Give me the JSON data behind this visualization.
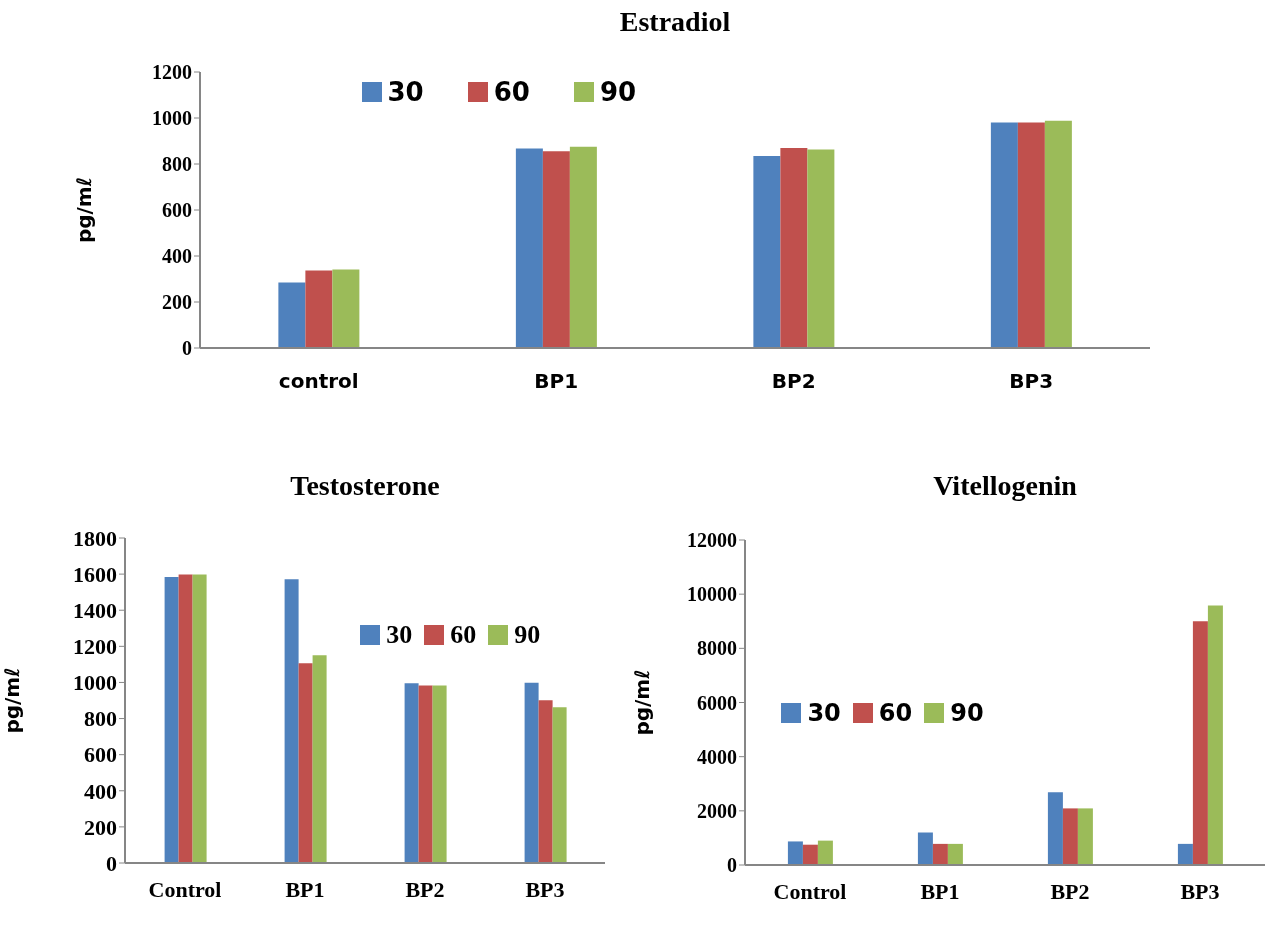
{
  "chart_data": [
    {
      "type": "bar",
      "title": "Estradiol",
      "ylabel": "pg/mℓ",
      "categories": [
        "control",
        "BP1",
        "BP2",
        "BP3"
      ],
      "series": [
        {
          "name": "30",
          "color": "#4f81bd",
          "values": [
            285,
            867,
            835,
            980
          ]
        },
        {
          "name": "60",
          "color": "#c0504d",
          "values": [
            337,
            855,
            870,
            980
          ]
        },
        {
          "name": "90",
          "color": "#9bbb59",
          "values": [
            341,
            875,
            863,
            988
          ]
        }
      ],
      "ylim": [
        0,
        1200
      ],
      "yticks": [
        0,
        200,
        400,
        600,
        800,
        1000,
        1200
      ],
      "grid": false,
      "legend": "top"
    },
    {
      "type": "bar",
      "title": "Testosterone",
      "ylabel": "pg/mℓ",
      "categories": [
        "Control",
        "BP1",
        "BP2",
        "BP3"
      ],
      "series": [
        {
          "name": "30",
          "color": "#4f81bd",
          "values": [
            1584,
            1572,
            995,
            999
          ]
        },
        {
          "name": "60",
          "color": "#c0504d",
          "values": [
            1598,
            1107,
            983,
            901
          ]
        },
        {
          "name": "90",
          "color": "#9bbb59",
          "values": [
            1598,
            1150,
            983,
            862
          ]
        }
      ],
      "ylim": [
        0,
        1800
      ],
      "yticks": [
        0,
        200,
        400,
        600,
        800,
        1000,
        1200,
        1400,
        1600,
        1800
      ],
      "grid": false,
      "legend": "right"
    },
    {
      "type": "bar",
      "title": "Vitellogenin",
      "ylabel": "pg/mℓ",
      "categories": [
        "Control",
        "BP1",
        "BP2",
        "BP3"
      ],
      "series": [
        {
          "name": "30",
          "color": "#4f81bd",
          "values": [
            870,
            1200,
            2690,
            780
          ]
        },
        {
          "name": "60",
          "color": "#c0504d",
          "values": [
            750,
            780,
            2090,
            9000
          ]
        },
        {
          "name": "90",
          "color": "#9bbb59",
          "values": [
            900,
            780,
            2090,
            9580
          ]
        }
      ],
      "ylim": [
        0,
        12000
      ],
      "yticks": [
        0,
        2000,
        4000,
        6000,
        8000,
        10000,
        12000
      ],
      "grid": false,
      "legend": "left"
    }
  ]
}
